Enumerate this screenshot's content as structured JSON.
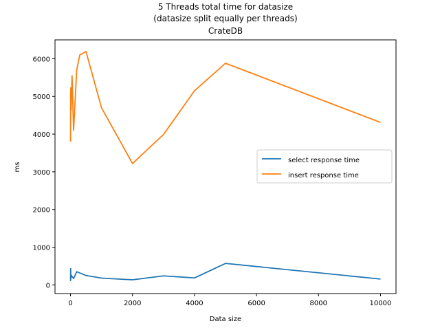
{
  "chart_data": {
    "type": "line",
    "title_lines": [
      "5 Threads total time for datasize",
      "(datasize split equally per threads)",
      "CrateDB"
    ],
    "xlabel": "Data size",
    "ylabel": "ms",
    "xlim": [
      -500,
      10500
    ],
    "ylim": [
      -230,
      6500
    ],
    "xticks": [
      0,
      2000,
      4000,
      6000,
      8000,
      10000
    ],
    "yticks": [
      0,
      1000,
      2000,
      3000,
      4000,
      5000,
      6000
    ],
    "grid": false,
    "legend_position": "center-right",
    "series": [
      {
        "name": "select response time",
        "color": "#1f77b4",
        "x": [
          1,
          5,
          10,
          20,
          50,
          100,
          200,
          500,
          1000,
          2000,
          3000,
          4000,
          5000,
          10000
        ],
        "y": [
          100,
          430,
          150,
          260,
          220,
          170,
          350,
          250,
          180,
          135,
          240,
          185,
          570,
          155
        ]
      },
      {
        "name": "insert response time",
        "color": "#ff7f0e",
        "x": [
          1,
          5,
          10,
          20,
          50,
          100,
          200,
          300,
          500,
          1000,
          2000,
          3000,
          4000,
          5000,
          10000
        ],
        "y": [
          3800,
          5000,
          5230,
          4650,
          5550,
          4100,
          5700,
          6100,
          6190,
          4700,
          3220,
          3990,
          5150,
          5880,
          4310
        ]
      }
    ]
  }
}
